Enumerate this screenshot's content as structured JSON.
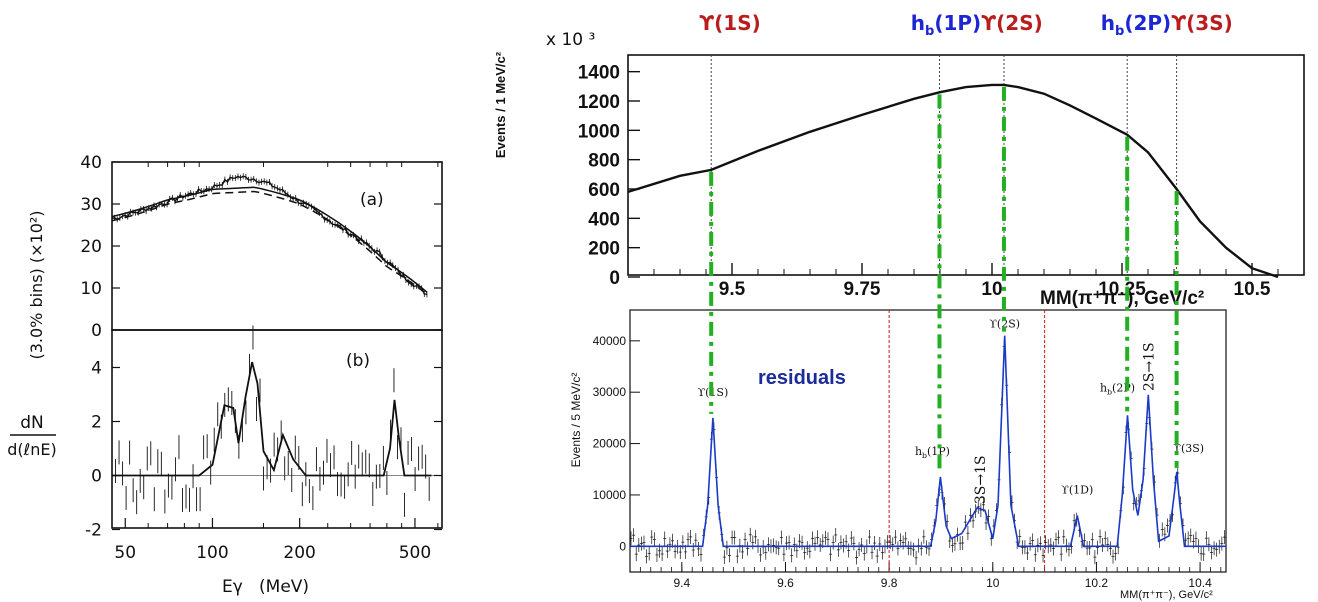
{
  "colors": {
    "upsilon": "#b81e1e",
    "hb": "#1c26d4",
    "green_line": "#22b022",
    "residual_fit": "#1a3ac8",
    "residual_label": "#1c2a9a",
    "red_dashed": "#d21414",
    "ink": "#111111"
  },
  "left_panel": {
    "ylabel_numer": "dN",
    "ylabel_denom": "d(ℓnE)",
    "ylabel_bins": "(3.0% bins) (×10²)",
    "xlabel": "Eγ   (MeV)",
    "panel_a_tag": "(a)",
    "panel_b_tag": "(b)",
    "x_ticks": [
      "50",
      "100",
      "200",
      "500"
    ],
    "y_ticks_a": [
      "40",
      "30",
      "20",
      "10",
      "0"
    ],
    "y_ticks_b": [
      "4",
      "2",
      "0",
      "-2"
    ]
  },
  "top_right": {
    "multiplier": "x 10 ³",
    "ylabel": "Events / 1 MeV/c²",
    "xlabel": "MM(π⁺π⁻), GeV/c²",
    "y_ticks": [
      "1400",
      "1200",
      "1000",
      "800",
      "600",
      "400",
      "200",
      "0"
    ],
    "x_ticks": [
      "9.5",
      "9.75",
      "10",
      "10.25",
      "10.5"
    ],
    "states": [
      {
        "text": "ϒ(1S)",
        "kind": "upsilon"
      },
      {
        "text": "h_b(1P)",
        "kind": "hb"
      },
      {
        "text": "ϒ(2S)",
        "kind": "upsilon"
      },
      {
        "text": "h_b(2P)",
        "kind": "hb"
      },
      {
        "text": "ϒ(3S)",
        "kind": "upsilon"
      }
    ]
  },
  "bottom_right": {
    "ylabel": "Events / 5 MeV/c²",
    "xlabel": "MM(π⁺π⁻), GeV/c²",
    "y_ticks": [
      "40000",
      "30000",
      "20000",
      "10000",
      "0"
    ],
    "x_ticks": [
      "9.4",
      "9.6",
      "9.8",
      "10",
      "10.2",
      "10.4"
    ],
    "residuals_label": "residuals",
    "peak_labels": [
      "ϒ(1S)",
      "h_b(1P)",
      "3S→1S",
      "ϒ(2S)",
      "ϒ(1D)",
      "h_b(2P)",
      "2S→1S",
      "ϒ(3S)"
    ]
  },
  "chart_data": [
    {
      "type": "line",
      "xlabel": "Eγ   (MeV)",
      "ylabel": "dN/d(ℓnE) (3.0% bins) (×10²)",
      "xscale": "log",
      "xlim": [
        45,
        620
      ],
      "panel": "(a)",
      "ylim": [
        0,
        40
      ],
      "series": [
        {
          "points": [
            [
              45,
              26.5
            ],
            [
              60,
              29
            ],
            [
              80,
              32
            ],
            [
              100,
              34
            ],
            [
              120,
              36.5
            ],
            [
              140,
              36
            ],
            [
              160,
              34.5
            ],
            [
              200,
              30.5
            ],
            [
              260,
              25.5
            ],
            [
              330,
              21
            ],
            [
              380,
              18
            ],
            [
              450,
              13
            ],
            [
              550,
              8.5
            ]
          ]
        },
        {
          "points": [
            [
              45,
              27
            ],
            [
              70,
              31
            ],
            [
              100,
              33.5
            ],
            [
              140,
              34
            ],
            [
              200,
              31
            ],
            [
              300,
              23.5
            ],
            [
              400,
              16
            ],
            [
              550,
              9
            ]
          ]
        },
        {
          "points": [
            [
              45,
              26
            ],
            [
              70,
              30
            ],
            [
              100,
              32.5
            ],
            [
              140,
              33
            ],
            [
              200,
              30
            ],
            [
              300,
              22.5
            ],
            [
              400,
              15
            ],
            [
              550,
              8.5
            ]
          ]
        }
      ]
    },
    {
      "type": "line",
      "xscale": "log",
      "xlim": [
        45,
        620
      ],
      "panel": "(b)",
      "ylim": [
        -2.5,
        5
      ],
      "series": [
        {
          "points": [
            [
              45,
              0
            ],
            [
              90,
              0
            ],
            [
              100,
              0.4
            ],
            [
              110,
              2.6
            ],
            [
              118,
              2.5
            ],
            [
              123,
              1.2
            ],
            [
              130,
              2.9
            ],
            [
              137,
              4.2
            ],
            [
              143,
              3.4
            ],
            [
              150,
              0.9
            ],
            [
              163,
              0.2
            ],
            [
              175,
              1.5
            ],
            [
              190,
              0.6
            ],
            [
              210,
              0
            ],
            [
              390,
              0
            ],
            [
              410,
              1
            ],
            [
              425,
              2.8
            ],
            [
              440,
              1.4
            ],
            [
              460,
              0
            ],
            [
              570,
              0
            ]
          ]
        }
      ]
    },
    {
      "type": "line",
      "xlabel": "MM(π⁺π⁻), GeV/c²",
      "ylabel": "Events / 1 MeV/c²",
      "y_multiplier": "x 10³",
      "xlim": [
        9.3,
        10.6
      ],
      "ylim": [
        0,
        1500
      ],
      "series": [
        {
          "x": [
            9.3,
            9.4,
            9.46,
            9.55,
            9.65,
            9.75,
            9.85,
            9.9,
            9.95,
            10.0,
            10.023,
            10.05,
            10.1,
            10.15,
            10.2,
            10.26,
            10.3,
            10.355,
            10.4,
            10.45,
            10.5,
            10.55
          ],
          "y": [
            580,
            690,
            730,
            860,
            990,
            1105,
            1215,
            1260,
            1295,
            1310,
            1310,
            1295,
            1250,
            1170,
            1080,
            970,
            850,
            600,
            380,
            200,
            60,
            0
          ]
        }
      ],
      "vertical_markers": [
        9.46,
        9.899,
        10.023,
        10.26,
        10.355
      ]
    },
    {
      "type": "line",
      "xlabel": "MM(π⁺π⁻), GeV/c²",
      "ylabel": "Events / 5 MeV/c²",
      "xlim": [
        9.3,
        10.45
      ],
      "ylim": [
        -5000,
        46000
      ],
      "series": [
        {
          "x": [
            9.3,
            9.44,
            9.45,
            9.46,
            9.47,
            9.48,
            9.88,
            9.89,
            9.899,
            9.91,
            9.92,
            9.94,
            9.97,
            9.985,
            10.0,
            10.01,
            10.023,
            10.035,
            10.05,
            10.15,
            10.163,
            10.175,
            10.24,
            10.25,
            10.26,
            10.27,
            10.28,
            10.29,
            10.3,
            10.31,
            10.32,
            10.34,
            10.35,
            10.355,
            10.36,
            10.37,
            10.45
          ],
          "y": [
            0,
            0,
            8000,
            25000,
            8000,
            0,
            0,
            5000,
            13500,
            4000,
            1500,
            2500,
            7500,
            7000,
            1500,
            8000,
            41000,
            8000,
            0,
            0,
            6000,
            0,
            0,
            10000,
            25500,
            11000,
            6000,
            13000,
            29500,
            13000,
            1000,
            2000,
            10000,
            14500,
            9000,
            0,
            0
          ]
        }
      ],
      "peaks": [
        {
          "label": "ϒ(1S)",
          "x": 9.46,
          "y": 25000
        },
        {
          "label": "h_b(1P)",
          "x": 9.899,
          "y": 13500
        },
        {
          "label": "3S→1S",
          "x": 9.975,
          "y": 7500
        },
        {
          "label": "ϒ(2S)",
          "x": 10.023,
          "y": 41000
        },
        {
          "label": "ϒ(1D)",
          "x": 10.163,
          "y": 6000
        },
        {
          "label": "h_b(2P)",
          "x": 10.26,
          "y": 25500
        },
        {
          "label": "2S→1S",
          "x": 10.3,
          "y": 29500
        },
        {
          "label": "ϒ(3S)",
          "x": 10.355,
          "y": 14500
        }
      ],
      "red_dashed_lines": [
        9.8,
        10.1
      ],
      "green_markers": [
        9.46,
        9.899,
        10.023,
        10.26,
        10.355
      ]
    }
  ]
}
